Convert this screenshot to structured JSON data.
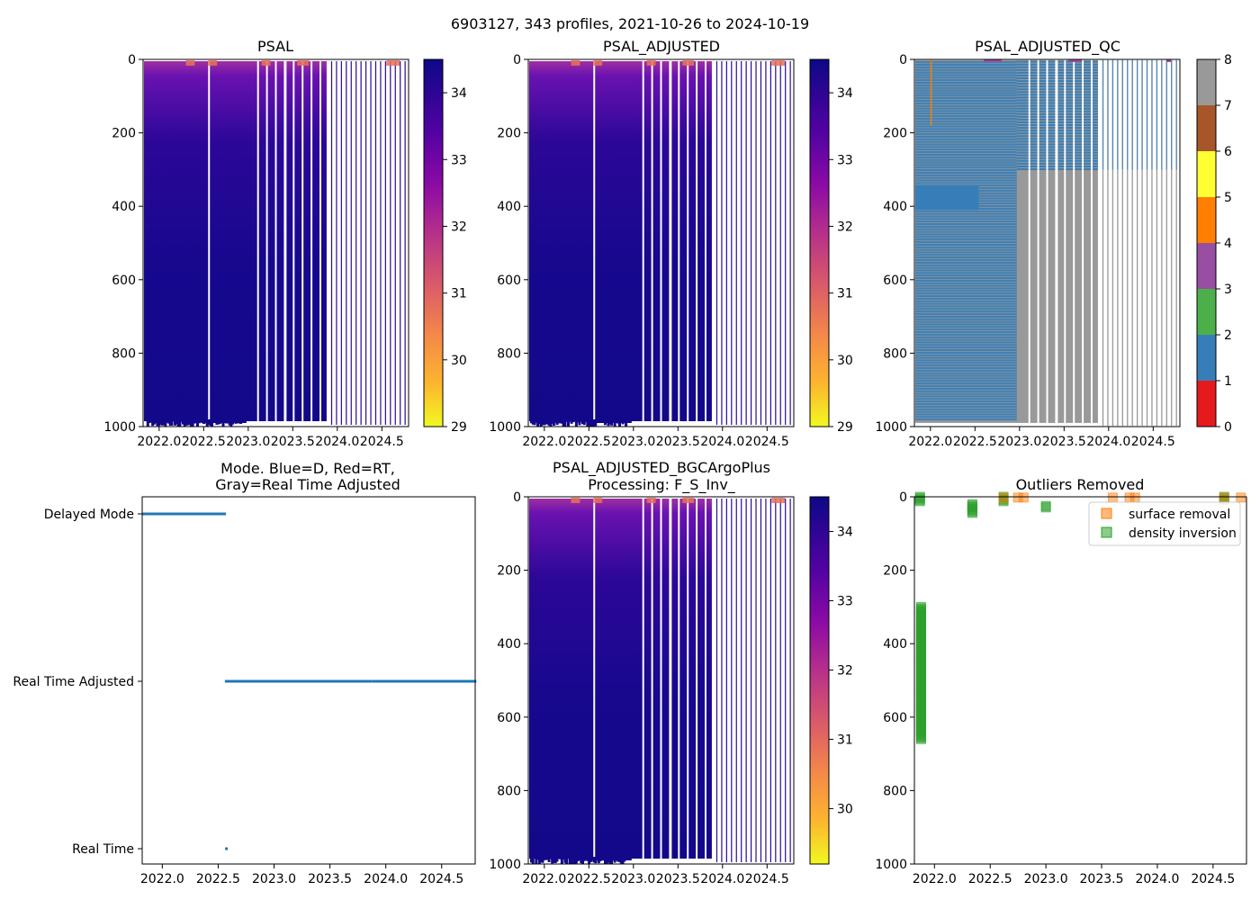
{
  "figure": {
    "suptitle": "6903127, 343 profiles, 2021-10-26 to 2024-10-19"
  },
  "chart_data": [
    {
      "id": "psal",
      "type": "heatmap",
      "title": "PSAL",
      "xticks": [
        "2022.0",
        "2022.5",
        "2023.0",
        "2023.5",
        "2024.0",
        "2024.5"
      ],
      "xtick_values": [
        2022.0,
        2022.5,
        2023.0,
        2023.5,
        2024.0,
        2024.5
      ],
      "xlim": [
        2021.82,
        2024.8
      ],
      "yticks": [
        "0",
        "200",
        "400",
        "600",
        "800",
        "1000"
      ],
      "ylim": [
        1000,
        0
      ],
      "colorbar": {
        "ticks": [
          "29",
          "30",
          "31",
          "32",
          "33",
          "34"
        ],
        "range": [
          29,
          34.5
        ],
        "cmap": "plasma_r"
      }
    },
    {
      "id": "psal_adj",
      "type": "heatmap",
      "title": "PSAL_ADJUSTED",
      "xticks": [
        "2022.0",
        "2022.5",
        "2023.0",
        "2023.5",
        "2024.0",
        "2024.5"
      ],
      "xtick_values": [
        2022.0,
        2022.5,
        2023.0,
        2023.5,
        2024.0,
        2024.5
      ],
      "xlim": [
        2021.82,
        2024.8
      ],
      "yticks": [
        "0",
        "200",
        "400",
        "600",
        "800",
        "1000"
      ],
      "ylim": [
        1000,
        0
      ],
      "colorbar": {
        "ticks": [
          "29",
          "30",
          "31",
          "32",
          "33",
          "34"
        ],
        "range": [
          29,
          34.5
        ],
        "cmap": "plasma_r"
      }
    },
    {
      "id": "psal_qc",
      "type": "heatmap",
      "title": "PSAL_ADJUSTED_QC",
      "xticks": [
        "2022.0",
        "2022.5",
        "2023.0",
        "2023.5",
        "2024.0",
        "2024.5"
      ],
      "xtick_values": [
        2022.0,
        2022.5,
        2023.0,
        2023.5,
        2024.0,
        2024.5
      ],
      "xlim": [
        2021.82,
        2024.8
      ],
      "yticks": [
        "0",
        "200",
        "400",
        "600",
        "800",
        "1000"
      ],
      "ylim": [
        1000,
        0
      ],
      "colorbar": {
        "ticks": [
          "0",
          "1",
          "2",
          "3",
          "4",
          "5",
          "6",
          "7",
          "8"
        ],
        "categories": [
          0,
          1,
          2,
          3,
          4,
          5,
          6,
          7
        ],
        "colors": [
          "#e41a1c",
          "#377eb8",
          "#4daf4a",
          "#984ea3",
          "#ff7f00",
          "#ffff33",
          "#a65628",
          "#f781bf"
        ],
        "top_color": "#999999"
      }
    },
    {
      "id": "mode",
      "type": "scatter",
      "title": "Mode. Blue=D, Red=RT,",
      "title_line2": "Gray=Real Time Adjusted",
      "xticks": [
        "2022.0",
        "2022.5",
        "2023.0",
        "2023.5",
        "2024.0",
        "2024.5"
      ],
      "xtick_values": [
        2022.0,
        2022.5,
        2023.0,
        2023.5,
        2024.0,
        2024.5
      ],
      "xlim": [
        2021.82,
        2024.8
      ],
      "ycategories": [
        "Delayed Mode",
        "Real Time Adjusted",
        "Real Time"
      ],
      "segments": [
        {
          "category": "Delayed Mode",
          "from": 2021.82,
          "to": 2022.57
        },
        {
          "category": "Real Time Adjusted",
          "from": 2022.56,
          "to": 2023.88
        },
        {
          "category": "Real Time Adjusted",
          "from": 2023.88,
          "to": 2024.8,
          "sparse": true
        }
      ],
      "points": [
        {
          "category": "Real Time",
          "x": 2022.57
        }
      ],
      "color": "#1f77b4"
    },
    {
      "id": "psal_bgc",
      "type": "heatmap",
      "title": "PSAL_ADJUSTED_BGCArgoPlus",
      "title_line2": "Processing: F_S_Inv_",
      "xticks": [
        "2022.0",
        "2022.5",
        "2023.0",
        "2023.5",
        "2024.0",
        "2024.5"
      ],
      "xtick_values": [
        2022.0,
        2022.5,
        2023.0,
        2023.5,
        2024.0,
        2024.5
      ],
      "xlim": [
        2021.82,
        2024.8
      ],
      "yticks": [
        "0",
        "200",
        "400",
        "600",
        "800",
        "1000"
      ],
      "ylim": [
        1000,
        0
      ],
      "colorbar": {
        "ticks": [
          "30",
          "31",
          "32",
          "33",
          "34"
        ],
        "range": [
          29.2,
          34.5
        ],
        "cmap": "plasma_r"
      }
    },
    {
      "id": "outliers",
      "type": "scatter",
      "title": "Outliers Removed",
      "xticks": [
        "2022.0",
        "2022.5",
        "2023.0",
        "2023.5",
        "2024.0",
        "2024.5"
      ],
      "xtick_values": [
        2022.0,
        2022.5,
        2023.0,
        2023.5,
        2024.0,
        2024.5
      ],
      "xlim": [
        2021.82,
        2024.8
      ],
      "yticks": [
        "0",
        "200",
        "400",
        "600",
        "800",
        "1000"
      ],
      "ylim": [
        1000,
        0
      ],
      "legend": {
        "position": "top-right",
        "entries": [
          "surface removal",
          "density inversion"
        ]
      },
      "series": [
        {
          "name": "surface removal",
          "color": "#ff7f0e",
          "points": [
            [
              2022.62,
              3
            ],
            [
              2022.75,
              2
            ],
            [
              2022.8,
              2
            ],
            [
              2023.6,
              2
            ],
            [
              2023.75,
              2
            ],
            [
              2023.8,
              2
            ],
            [
              2024.6,
              3
            ],
            [
              2024.75,
              2
            ]
          ]
        },
        {
          "name": "density inversion",
          "color": "#2ca02c",
          "clusters": [
            {
              "x": 2021.87,
              "y_from": 0,
              "y_to": 12
            },
            {
              "x": 2021.88,
              "y_from": 300,
              "y_to": 660
            },
            {
              "x": 2022.34,
              "y_from": 20,
              "y_to": 45
            },
            {
              "x": 2022.62,
              "y_from": 0,
              "y_to": 12
            },
            {
              "x": 2023.0,
              "y_from": 25,
              "y_to": 32
            },
            {
              "x": 2024.6,
              "y_from": 0,
              "y_to": 8
            }
          ]
        }
      ]
    }
  ]
}
